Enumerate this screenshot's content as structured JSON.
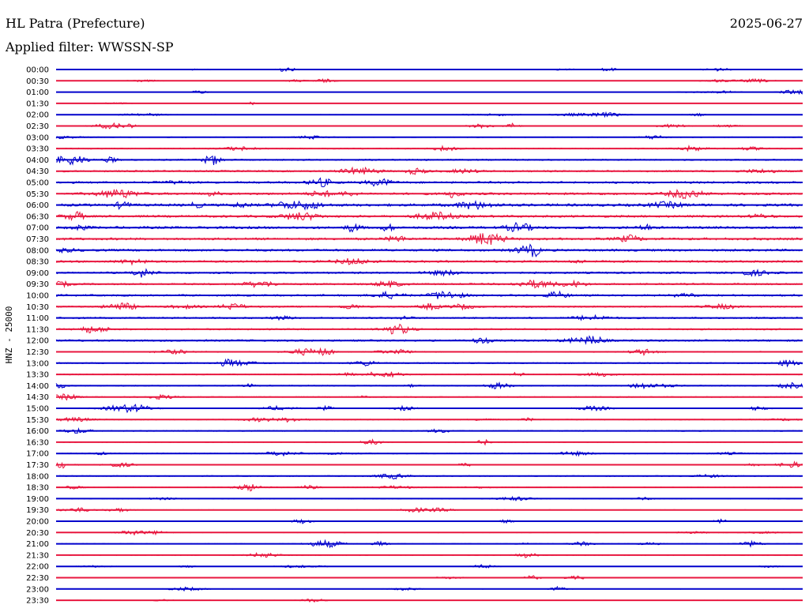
{
  "header": {
    "station": "HL Patra (Prefecture)",
    "date": "2025-06-27",
    "filter": "Applied filter: WWSSN-SP"
  },
  "chart_data": {
    "type": "line",
    "subtype": "helicorder",
    "ylabel": "HNZ - 25000",
    "row_labels": [
      "00:00",
      "00:30",
      "01:00",
      "01:30",
      "02:00",
      "02:30",
      "03:00",
      "03:30",
      "04:00",
      "04:30",
      "05:00",
      "05:30",
      "06:00",
      "06:30",
      "07:00",
      "07:30",
      "08:00",
      "08:30",
      "09:00",
      "09:30",
      "10:00",
      "10:30",
      "11:00",
      "11:30",
      "12:00",
      "12:30",
      "13:00",
      "13:30",
      "14:00",
      "14:30",
      "15:00",
      "15:30",
      "16:00",
      "16:30",
      "17:00",
      "17:30",
      "18:00",
      "18:30",
      "19:00",
      "19:30",
      "20:00",
      "20:30",
      "21:00",
      "21:30",
      "22:00",
      "22:30",
      "23:00",
      "23:30"
    ],
    "amplitude": [
      0.05,
      0.08,
      0.06,
      0.05,
      0.12,
      0.18,
      0.2,
      0.3,
      0.38,
      0.45,
      0.55,
      0.6,
      0.7,
      0.6,
      0.65,
      0.62,
      0.6,
      0.55,
      0.5,
      0.45,
      0.5,
      0.42,
      0.45,
      0.4,
      0.5,
      0.3,
      0.32,
      0.3,
      0.3,
      0.25,
      0.25,
      0.25,
      0.28,
      0.2,
      0.25,
      0.22,
      0.25,
      0.2,
      0.2,
      0.15,
      0.18,
      0.15,
      0.18,
      0.2,
      0.08,
      0.12,
      0.12,
      0.08
    ],
    "colors": [
      "#0000cc",
      "#e8173f"
    ],
    "grid": false
  }
}
